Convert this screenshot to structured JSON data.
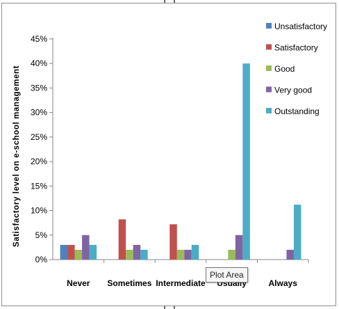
{
  "chart_data": {
    "type": "bar",
    "title": "",
    "xlabel": "",
    "ylabel": "Satisfactory level on e-school management",
    "categories": [
      "Never",
      "Sometimes",
      "Intermediate",
      "Usually",
      "Always"
    ],
    "series": [
      {
        "name": "Unsatisfactory",
        "color": "#4f81bd",
        "values": [
          3,
          0,
          0,
          0,
          0
        ]
      },
      {
        "name": "Satisfactory",
        "color": "#c0504d",
        "values": [
          3,
          8.2,
          7.2,
          0,
          0
        ]
      },
      {
        "name": "Good",
        "color": "#9bbb59",
        "values": [
          2,
          2,
          2,
          2,
          0
        ]
      },
      {
        "name": "Very good",
        "color": "#8064a2",
        "values": [
          5,
          3,
          2,
          5,
          2
        ]
      },
      {
        "name": "Outstanding",
        "color": "#4bacc6",
        "values": [
          3,
          2,
          3,
          40,
          11.2
        ]
      }
    ],
    "ylim": [
      0,
      45
    ],
    "y_ticks": [
      "0%",
      "5%",
      "10%",
      "15%",
      "20%",
      "25%",
      "30%",
      "35%",
      "40%",
      "45%"
    ],
    "grid": false,
    "legend_position": "top-right"
  },
  "tooltip": {
    "text": "Plot Area"
  }
}
